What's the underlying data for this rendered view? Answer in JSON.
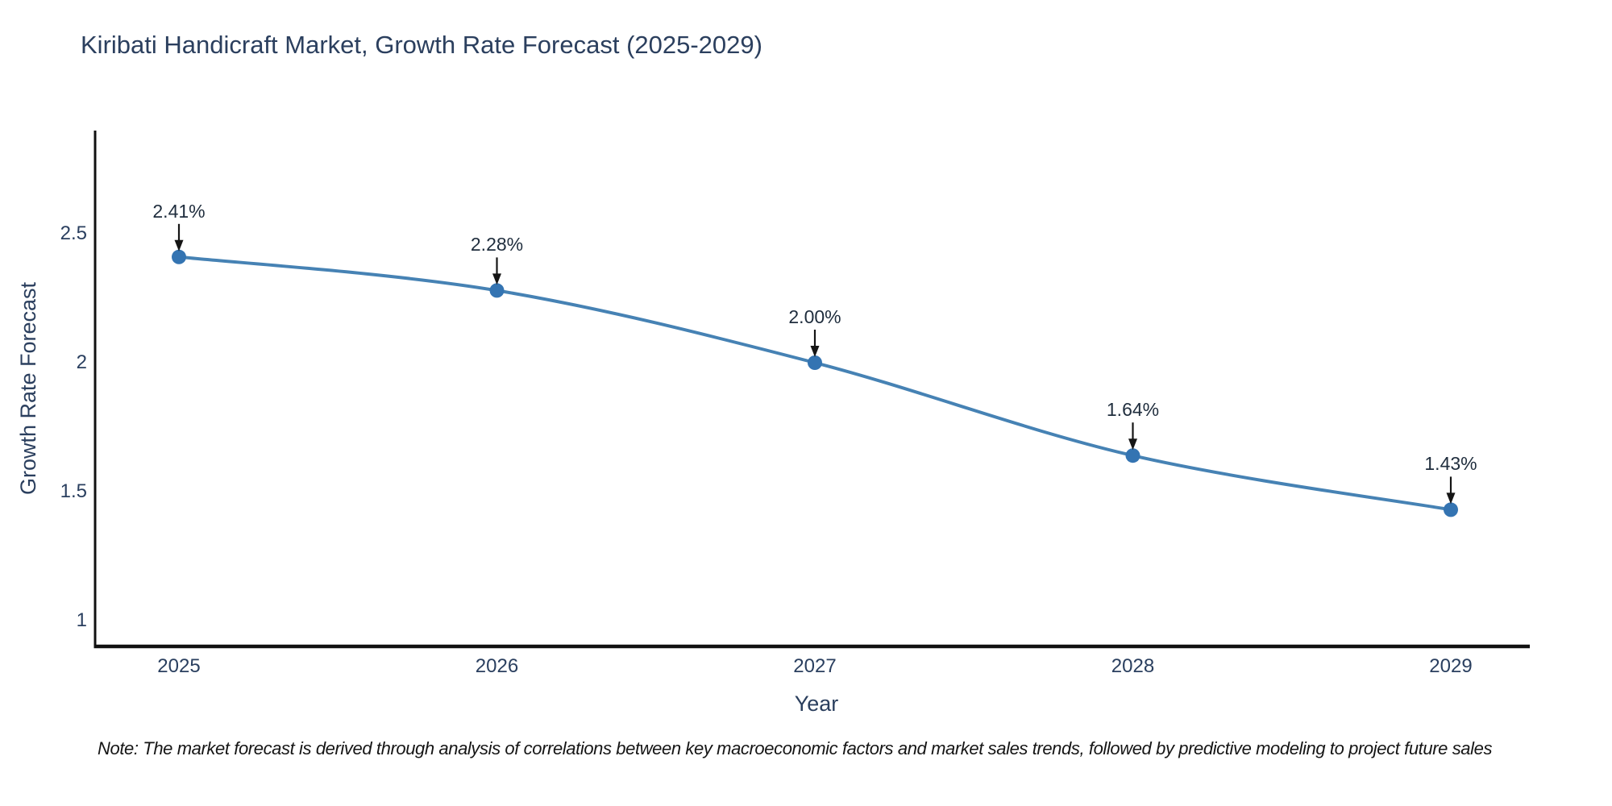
{
  "chart_data": {
    "type": "line",
    "title": "Kiribati Handicraft Market, Growth Rate Forecast (2025-2029)",
    "xlabel": "Year",
    "ylabel": "Growth Rate Forecast",
    "categories": [
      "2025",
      "2026",
      "2027",
      "2028",
      "2029"
    ],
    "values": [
      2.41,
      2.28,
      2.0,
      1.64,
      1.43
    ],
    "point_labels": [
      "2.41%",
      "2.28%",
      "2.00%",
      "1.64%",
      "1.43%"
    ],
    "series_name": "Growth Rate Forecast",
    "yticks": [
      "2.5",
      "2",
      "1.5",
      "1"
    ],
    "ytick_values": [
      2.5,
      2.0,
      1.5,
      1.0
    ],
    "ylim": [
      0.9,
      2.9
    ],
    "grid": false,
    "legend": false,
    "line_shape": "spline",
    "marker": "circle",
    "annotation_style": "value-label-with-down-arrow",
    "line_color": "#4682b4",
    "marker_color": "#3474b2",
    "axis_color": "#111111",
    "arrow_color": "#151515",
    "text_color": "#2a3f5f"
  },
  "note": "Note: The market forecast is derived through analysis of correlations between key macroeconomic factors and market sales trends, followed by predictive modeling to project future sales"
}
